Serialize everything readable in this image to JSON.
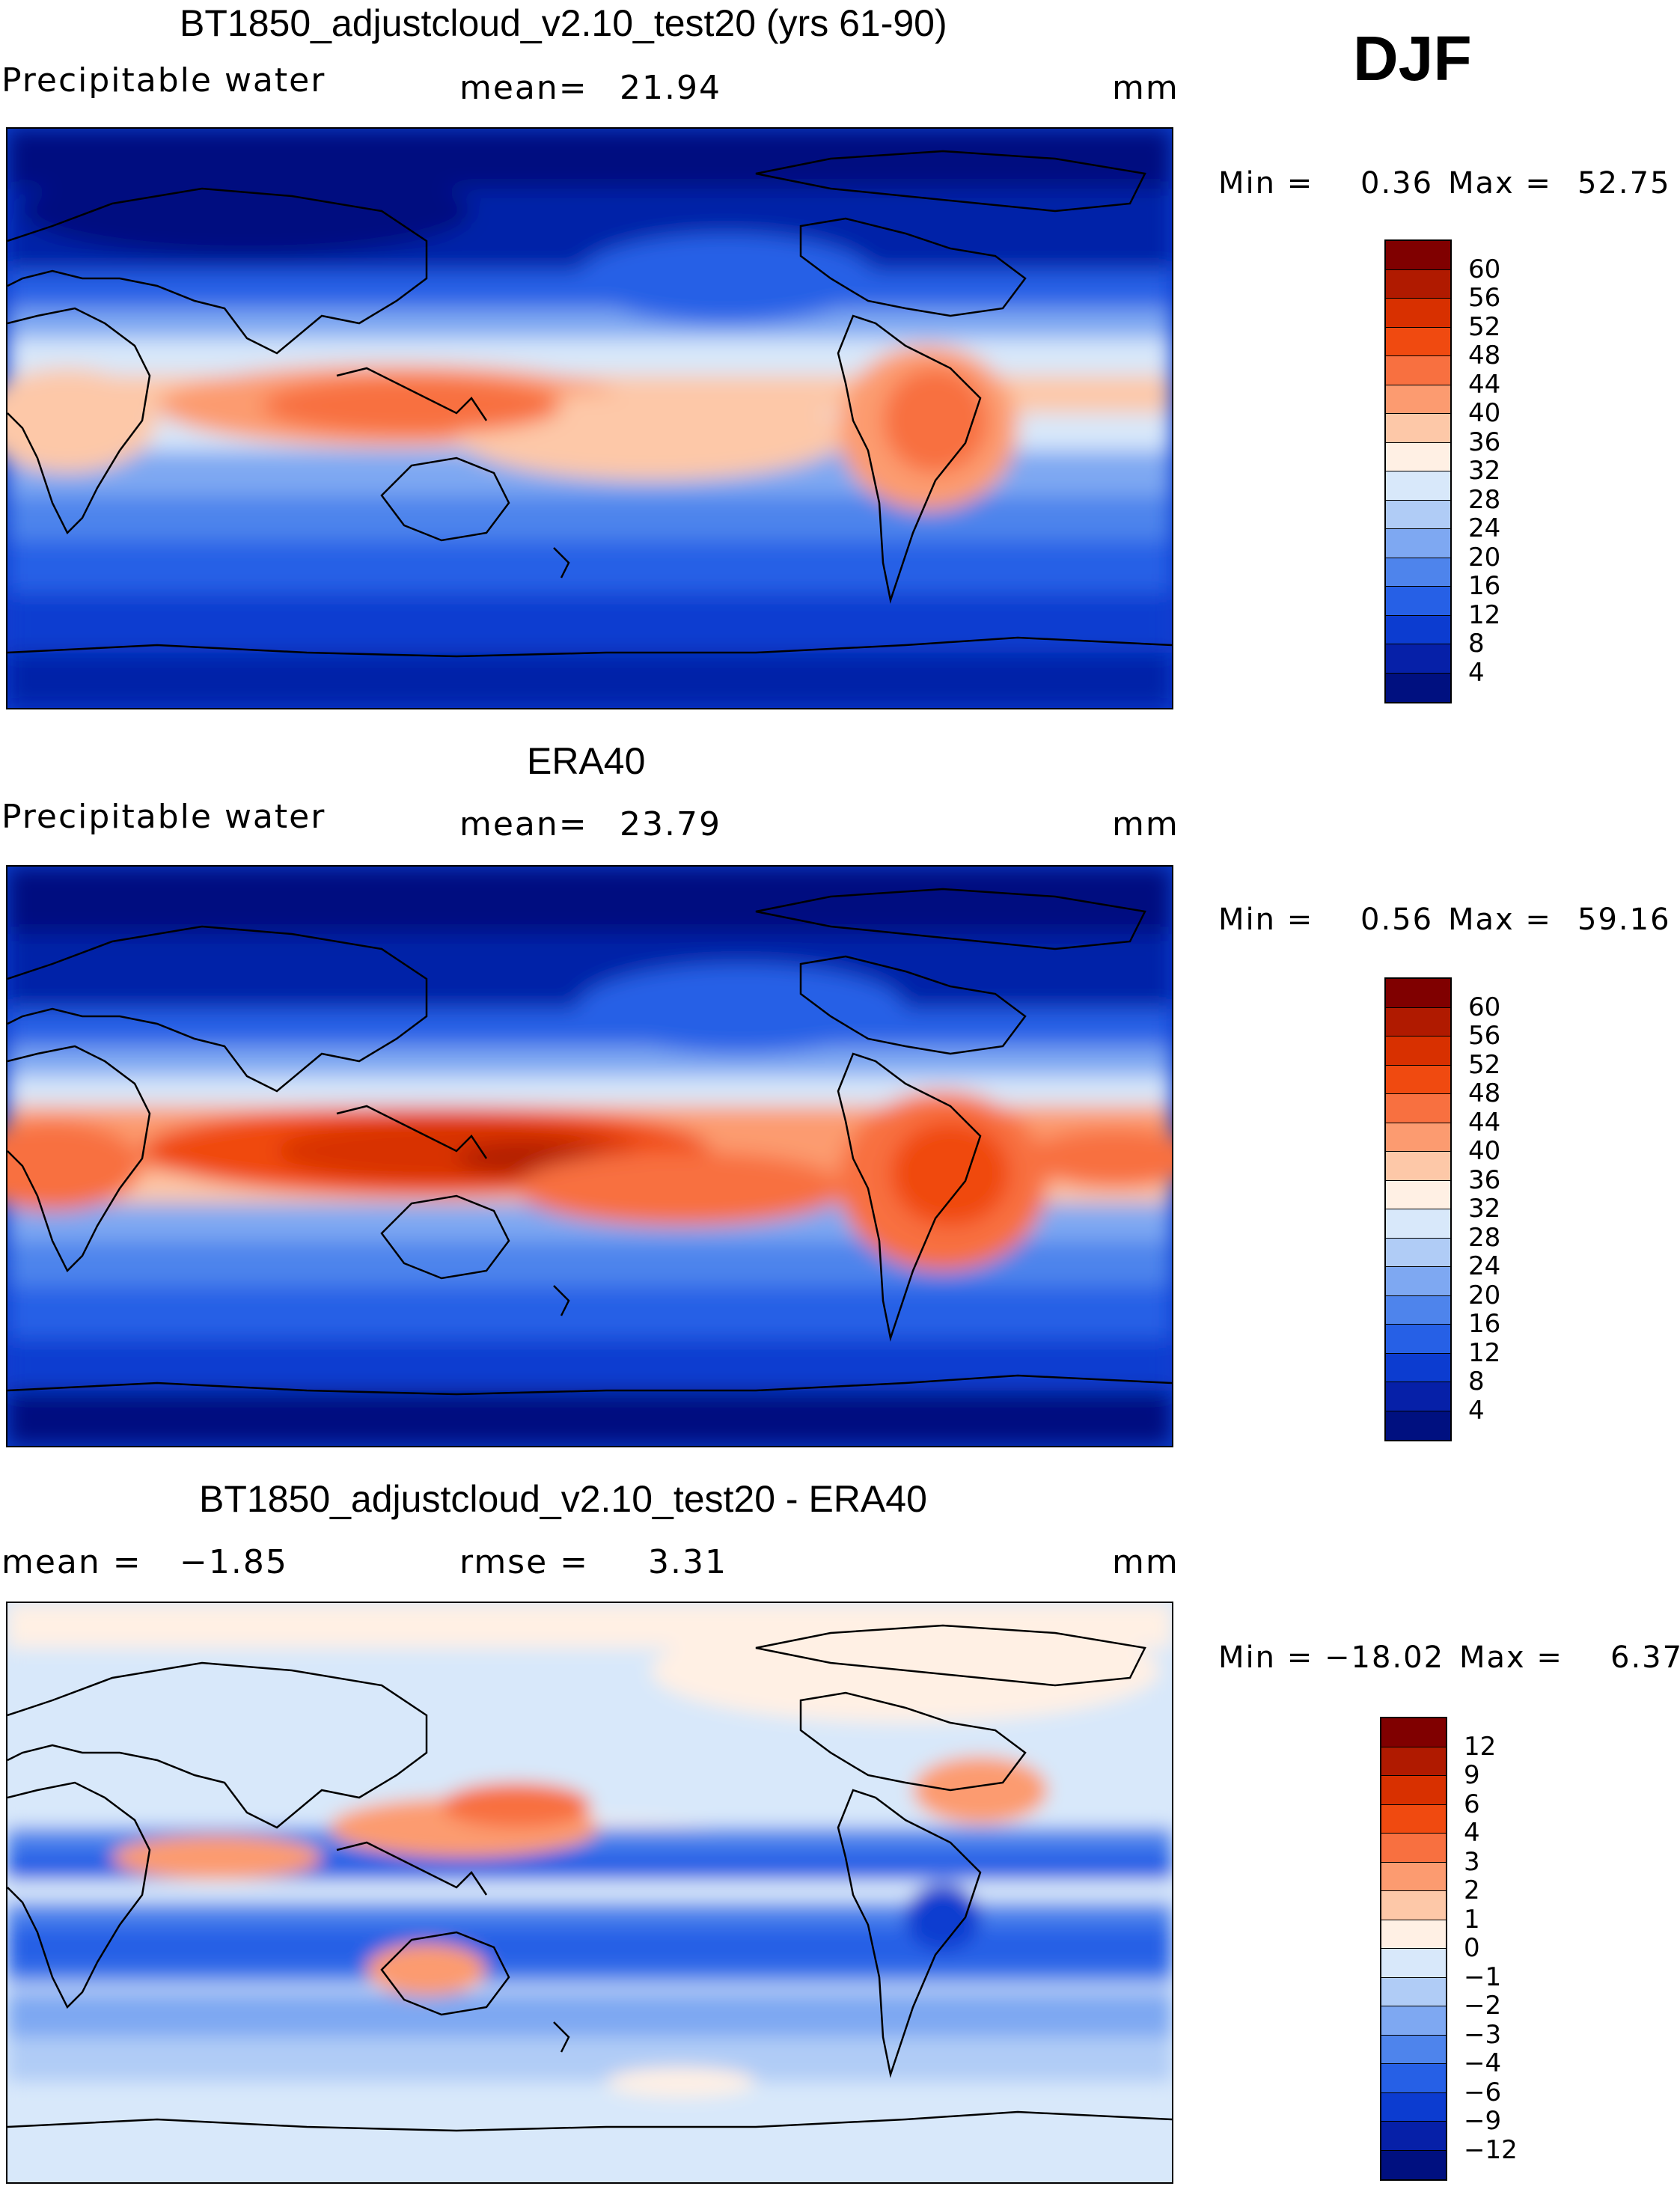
{
  "season": "DJF",
  "panels": [
    {
      "title": "BT1850_adjustcloud_v2.10_test20 (yrs 61-90)",
      "variable": "Precipitable water",
      "mean_label": "mean=",
      "mean_value": "21.94",
      "units": "mm",
      "min_label": "Min =",
      "min_value": "0.36",
      "max_label": "Max =",
      "max_value": "52.75",
      "colorbar_ticks": [
        "60",
        "56",
        "52",
        "48",
        "44",
        "40",
        "36",
        "32",
        "28",
        "24",
        "20",
        "16",
        "12",
        "8",
        "4"
      ],
      "colorbar_colors": [
        "#800000",
        "#b01a00",
        "#d83000",
        "#f04a10",
        "#f87040",
        "#fc9b70",
        "#fdc8a8",
        "#fff0e4",
        "#d8e8fa",
        "#b0ccf6",
        "#7ea8f2",
        "#4e84ec",
        "#2660e6",
        "#0c3cd0",
        "#0620a8",
        "#001080"
      ]
    },
    {
      "title": "ERA40",
      "variable": "Precipitable water",
      "mean_label": "mean=",
      "mean_value": "23.79",
      "units": "mm",
      "min_label": "Min =",
      "min_value": "0.56",
      "max_label": "Max =",
      "max_value": "59.16",
      "colorbar_ticks": [
        "60",
        "56",
        "52",
        "48",
        "44",
        "40",
        "36",
        "32",
        "28",
        "24",
        "20",
        "16",
        "12",
        "8",
        "4"
      ],
      "colorbar_colors": [
        "#800000",
        "#b01a00",
        "#d83000",
        "#f04a10",
        "#f87040",
        "#fc9b70",
        "#fdc8a8",
        "#fff0e4",
        "#d8e8fa",
        "#b0ccf6",
        "#7ea8f2",
        "#4e84ec",
        "#2660e6",
        "#0c3cd0",
        "#0620a8",
        "#001080"
      ]
    },
    {
      "title": "BT1850_adjustcloud_v2.10_test20 - ERA40",
      "mean_label": "mean =",
      "mean_value": "−1.85",
      "rmse_label": "rmse =",
      "rmse_value": "3.31",
      "units": "mm",
      "min_label": "Min =",
      "min_value": "−18.02",
      "max_label": "Max =",
      "max_value": "6.37",
      "colorbar_ticks": [
        "12",
        "9",
        "6",
        "4",
        "3",
        "2",
        "1",
        "0",
        "−1",
        "−2",
        "−3",
        "−4",
        "−6",
        "−9",
        "−12"
      ],
      "colorbar_colors": [
        "#800000",
        "#b01a00",
        "#d83000",
        "#f04a10",
        "#f87040",
        "#fc9b70",
        "#fdc8a8",
        "#fff0e4",
        "#d8e8fa",
        "#b0ccf6",
        "#7ea8f2",
        "#4e84ec",
        "#2660e6",
        "#0c3cd0",
        "#0620a8",
        "#001080"
      ]
    }
  ]
}
